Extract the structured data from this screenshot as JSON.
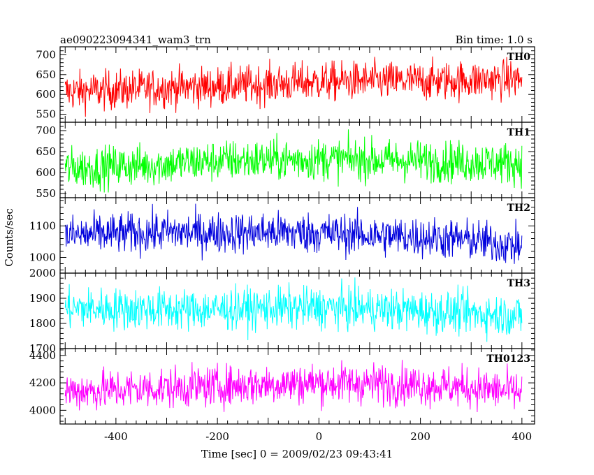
{
  "chart_data": {
    "type": "line",
    "title_left": "ae090223094341_wam3_trn",
    "title_right": "Bin time: 1.0 s",
    "xlabel": "Time [sec] 0 = 2009/02/23 09:43:41",
    "ylabel": "Counts/sec",
    "xlim": [
      -510,
      425
    ],
    "x_ticks": [
      -400,
      -200,
      0,
      200,
      400
    ],
    "x_range": [
      -500,
      400
    ],
    "bin_time": 1.0,
    "panels": [
      {
        "name": "TH0",
        "color": "#ff0000",
        "ylim": [
          530,
          720
        ],
        "y_ticks": [
          550,
          600,
          650,
          700
        ],
        "mean_start": 610,
        "mean_end": 635,
        "noise": 25,
        "series": [
          {
            "x": -500,
            "y": 607
          },
          {
            "x": -400,
            "y": 611
          },
          {
            "x": -300,
            "y": 617
          },
          {
            "x": -200,
            "y": 620
          },
          {
            "x": -100,
            "y": 626
          },
          {
            "x": 0,
            "y": 632
          },
          {
            "x": 100,
            "y": 634
          },
          {
            "x": 200,
            "y": 633
          },
          {
            "x": 300,
            "y": 636
          },
          {
            "x": 400,
            "y": 638
          }
        ]
      },
      {
        "name": "TH1",
        "color": "#00ff00",
        "ylim": [
          540,
          720
        ],
        "y_ticks": [
          550,
          600,
          650,
          700
        ],
        "mean_start": 612,
        "mean_end": 628,
        "noise": 25,
        "series": [
          {
            "x": -500,
            "y": 610
          },
          {
            "x": -400,
            "y": 615
          },
          {
            "x": -300,
            "y": 620
          },
          {
            "x": -200,
            "y": 628
          },
          {
            "x": -100,
            "y": 630
          },
          {
            "x": 0,
            "y": 632
          },
          {
            "x": 100,
            "y": 630
          },
          {
            "x": 200,
            "y": 628
          },
          {
            "x": 300,
            "y": 625
          },
          {
            "x": 400,
            "y": 622
          }
        ]
      },
      {
        "name": "TH2",
        "color": "#0000dd",
        "ylim": [
          950,
          1190
        ],
        "y_ticks": [
          1000,
          1100
        ],
        "mean_start": 1070,
        "mean_end": 1035,
        "noise": 33,
        "series": [
          {
            "x": -500,
            "y": 1070
          },
          {
            "x": -400,
            "y": 1075
          },
          {
            "x": -300,
            "y": 1080
          },
          {
            "x": -200,
            "y": 1078
          },
          {
            "x": -100,
            "y": 1080
          },
          {
            "x": 0,
            "y": 1078
          },
          {
            "x": 100,
            "y": 1070
          },
          {
            "x": 200,
            "y": 1065
          },
          {
            "x": 300,
            "y": 1055
          },
          {
            "x": 400,
            "y": 1035
          }
        ]
      },
      {
        "name": "TH3",
        "color": "#00ffff",
        "ylim": [
          1700,
          2000
        ],
        "y_ticks": [
          1700,
          1800,
          1900,
          2000
        ],
        "mean_start": 1860,
        "mean_end": 1830,
        "noise": 42,
        "series": [
          {
            "x": -500,
            "y": 1860
          },
          {
            "x": -400,
            "y": 1858
          },
          {
            "x": -300,
            "y": 1855
          },
          {
            "x": -200,
            "y": 1855
          },
          {
            "x": -100,
            "y": 1860
          },
          {
            "x": 0,
            "y": 1862
          },
          {
            "x": 100,
            "y": 1858
          },
          {
            "x": 200,
            "y": 1850
          },
          {
            "x": 300,
            "y": 1840
          },
          {
            "x": 400,
            "y": 1830
          }
        ]
      },
      {
        "name": "TH0123",
        "color": "#ff00ff",
        "ylim": [
          3900,
          4450
        ],
        "y_ticks": [
          4000,
          4200,
          4400
        ],
        "mean_start": 4140,
        "mean_end": 4130,
        "noise": 75,
        "series": [
          {
            "x": -500,
            "y": 4140
          },
          {
            "x": -400,
            "y": 4150
          },
          {
            "x": -300,
            "y": 4165
          },
          {
            "x": -200,
            "y": 4175
          },
          {
            "x": -100,
            "y": 4190
          },
          {
            "x": 0,
            "y": 4200
          },
          {
            "x": 100,
            "y": 4195
          },
          {
            "x": 200,
            "y": 4185
          },
          {
            "x": 300,
            "y": 4165
          },
          {
            "x": 400,
            "y": 4130
          }
        ]
      }
    ]
  }
}
